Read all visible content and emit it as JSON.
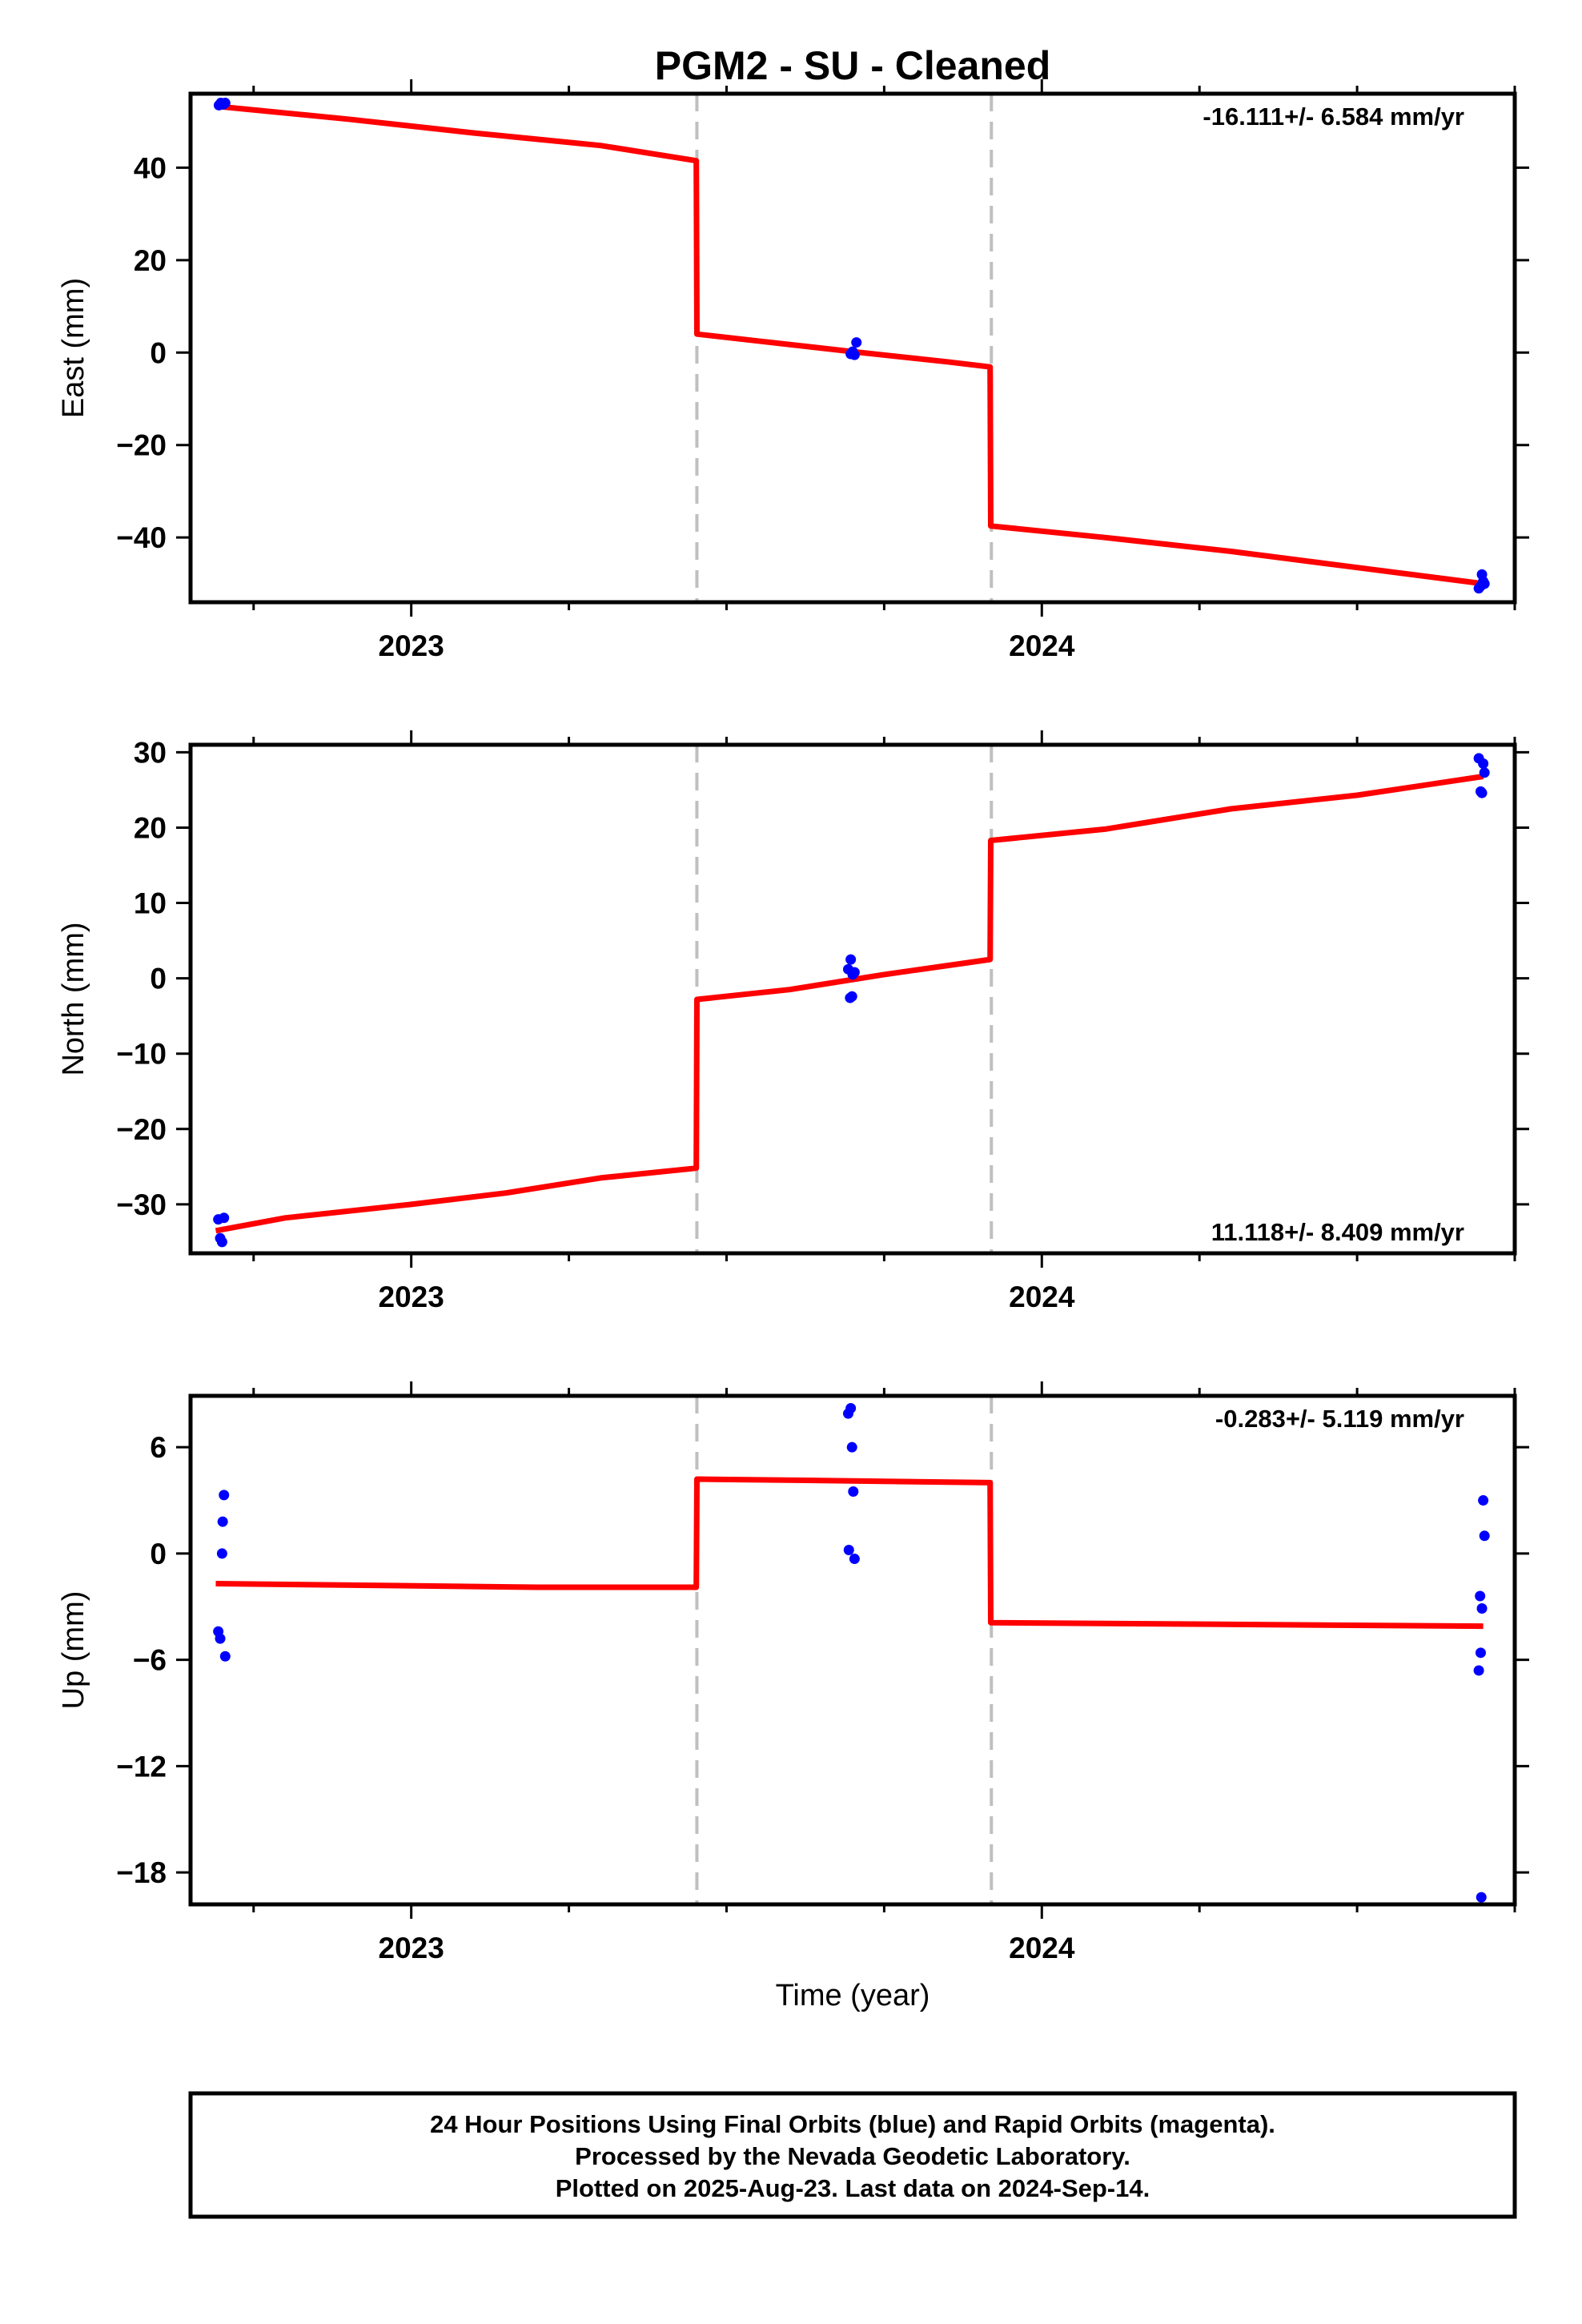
{
  "title": "PGM2  - SU - Cleaned",
  "xlabel": "Time (year)",
  "footer": {
    "line1": "24 Hour Positions Using Final Orbits (blue) and Rapid Orbits (magenta).",
    "line2": "Processed by the Nevada Geodetic Laboratory.",
    "line3": "Plotted on 2025-Aug-23. Last data on 2024-Sep-14."
  },
  "colors": {
    "points": "#0000ff",
    "fit": "#ff0000",
    "steps": "#bfbfbf",
    "frame": "#000000"
  },
  "chart_data": [
    {
      "type": "scatter",
      "ylabel": "East (mm)",
      "rate": "-16.111+/- 6.584 mm/yr",
      "rate_position": "top-right",
      "xlim": [
        2022.65,
        2024.75
      ],
      "ylim": [
        -54,
        56
      ],
      "xticks": [
        2023,
        2024
      ],
      "xtick_labels": [
        "2023",
        "2024"
      ],
      "yticks": [
        -40,
        -20,
        0,
        20,
        40
      ],
      "ytick_labels": [
        "−40",
        "−20",
        "0",
        "20",
        "40"
      ],
      "step_dates": [
        2023.453,
        2023.92
      ],
      "points": {
        "x": [
          2022.695,
          2022.698,
          2022.702,
          2022.705,
          2023.697,
          2023.7,
          2023.703,
          2023.706,
          2024.693,
          2024.696,
          2024.698,
          2024.7,
          2024.702
        ],
        "y": [
          53.5,
          54.0,
          53.7,
          54.0,
          -0.3,
          0.2,
          -0.5,
          2.2,
          -51.0,
          -50.5,
          -48.0,
          -49.5,
          -50.0
        ]
      },
      "fit": {
        "x": [
          2022.69,
          2022.9,
          2023.1,
          2023.3,
          2023.452,
          2023.453,
          2023.55,
          2023.7,
          2023.85,
          2023.918,
          2023.919,
          2024.1,
          2024.3,
          2024.5,
          2024.7
        ],
        "y": [
          53.3,
          50.5,
          47.5,
          44.8,
          41.5,
          4.0,
          2.5,
          0.2,
          -2.0,
          -3.1,
          -37.5,
          -40.0,
          -43.0,
          -46.5,
          -50.0
        ]
      }
    },
    {
      "type": "scatter",
      "ylabel": "North (mm)",
      "rate": "11.118+/- 8.409 mm/yr",
      "rate_position": "bottom-right",
      "xlim": [
        2022.65,
        2024.75
      ],
      "ylim": [
        -36.5,
        31
      ],
      "xticks": [
        2023,
        2024
      ],
      "xtick_labels": [
        "2023",
        "2024"
      ],
      "yticks": [
        -30,
        -20,
        -10,
        0,
        10,
        20,
        30
      ],
      "ytick_labels": [
        "−30",
        "−20",
        "−10",
        "0",
        "10",
        "20",
        "30"
      ],
      "step_dates": [
        2023.453,
        2023.92
      ],
      "points": {
        "x": [
          2022.694,
          2022.697,
          2022.7,
          2022.703,
          2023.693,
          2023.697,
          2023.7,
          2023.703,
          2023.696,
          2023.699,
          2024.693,
          2024.696,
          2024.698,
          2024.7,
          2024.702
        ],
        "y": [
          -32.0,
          -34.5,
          -35.0,
          -31.8,
          1.2,
          2.5,
          0.5,
          0.8,
          -2.6,
          -2.4,
          29.2,
          24.8,
          24.6,
          28.5,
          27.3
        ]
      },
      "fit": {
        "x": [
          2022.69,
          2022.8,
          2023.0,
          2023.15,
          2023.3,
          2023.452,
          2023.453,
          2023.6,
          2023.75,
          2023.918,
          2023.919,
          2024.1,
          2024.3,
          2024.5,
          2024.7
        ],
        "y": [
          -33.5,
          -31.8,
          -30.0,
          -28.5,
          -26.5,
          -25.2,
          -2.8,
          -1.5,
          0.5,
          2.5,
          18.3,
          19.8,
          22.5,
          24.3,
          26.8
        ]
      }
    },
    {
      "type": "scatter",
      "ylabel": "Up (mm)",
      "rate": "-0.283+/- 5.119 mm/yr",
      "rate_position": "top-right",
      "xlim": [
        2022.65,
        2024.75
      ],
      "ylim": [
        -19.8,
        8.9
      ],
      "xticks": [
        2023,
        2024
      ],
      "xtick_labels": [
        "2023",
        "2024"
      ],
      "yticks": [
        -18,
        -12,
        -6,
        0,
        6
      ],
      "ytick_labels": [
        "−18",
        "−12",
        "−6",
        "0",
        "6"
      ],
      "step_dates": [
        2023.453,
        2023.92
      ],
      "points": {
        "x": [
          2022.694,
          2022.697,
          2022.7,
          2022.703,
          2022.701,
          2022.705,
          2023.693,
          2023.697,
          2023.699,
          2023.701,
          2023.694,
          2023.703,
          2024.693,
          2024.695,
          2024.698,
          2024.7,
          2024.696,
          2024.702,
          2024.697
        ],
        "y": [
          -4.4,
          -4.8,
          0.0,
          3.3,
          1.8,
          -5.8,
          7.9,
          8.2,
          6.0,
          3.5,
          0.2,
          -0.3,
          -6.6,
          -2.4,
          -3.1,
          3.0,
          -5.6,
          1.0,
          -19.4
        ]
      },
      "fit": {
        "x": [
          2022.69,
          2023.2,
          2023.452,
          2023.453,
          2023.7,
          2023.918,
          2023.919,
          2024.3,
          2024.7
        ],
        "y": [
          -1.7,
          -1.9,
          -1.9,
          4.2,
          4.1,
          4.0,
          -3.9,
          -4.0,
          -4.1
        ]
      }
    }
  ]
}
